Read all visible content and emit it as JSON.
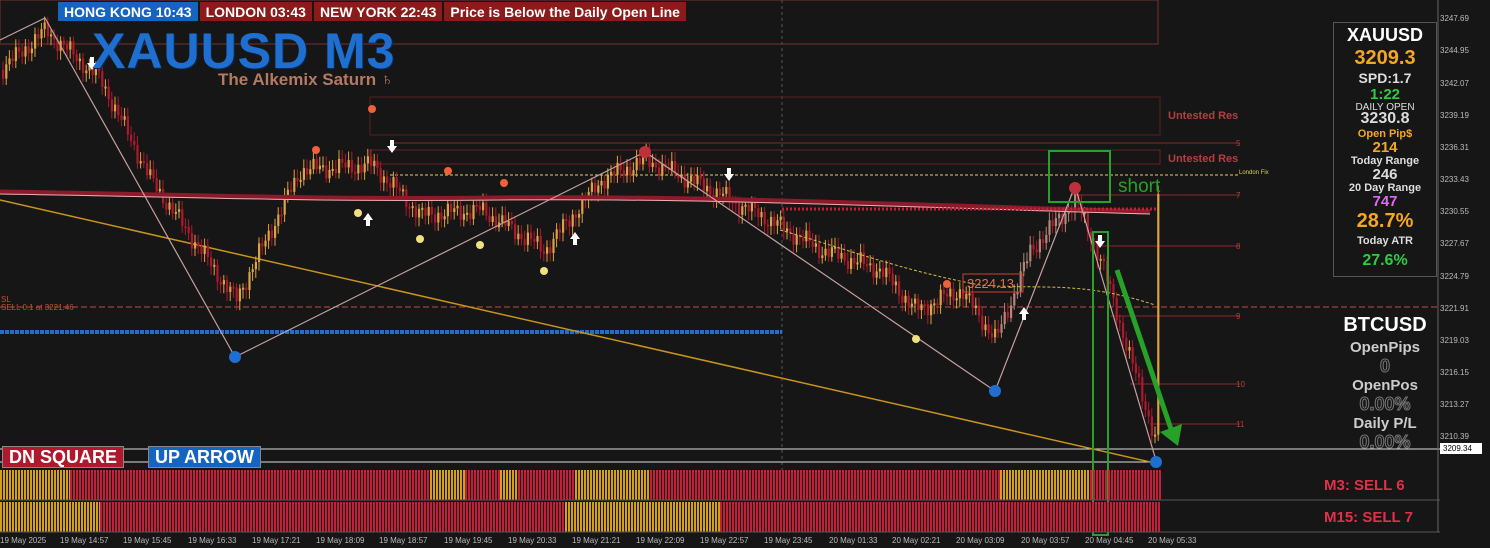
{
  "header": {
    "hongkong": "HONG KONG 10:43",
    "london": "LONDON  03:43",
    "newyork": "NEW YORK    22:43",
    "message": "Price is Below the Daily Open Line"
  },
  "title": {
    "symbol_timeframe": "XAUUSD M3",
    "subtitle": "The Alkemix Saturn ♄"
  },
  "buttons": {
    "dn_square": "DN SQUARE",
    "up_arrow": "UP ARROW"
  },
  "chart_labels": {
    "untested_res_1": "Untested Res",
    "untested_res_2": "Untested Res",
    "london_fix": "London Fix",
    "price_box": "3224.13",
    "short": "short",
    "sl": "SL",
    "sell_note": "SELL 0.1 at 3221.46",
    "fib_labels": [
      "5",
      "7",
      "8",
      "9",
      "10",
      "11"
    ]
  },
  "xau_panel": {
    "symbol": "XAUUSD",
    "price": "3209.3",
    "spread": "SPD:1.7",
    "time": "1:22",
    "daily_open_label": "DAILY OPEN",
    "daily_open_value": "3230.8",
    "open_pips_label": "Open Pip$",
    "open_pips_value": "214",
    "today_range_label": "Today Range",
    "today_range_value": "246",
    "twenty_day_label": "20 Day Range",
    "twenty_day_value": "747",
    "ratio": "28.7%",
    "today_atr_label": "Today ATR",
    "today_atr_value": "27.6%",
    "colors": {
      "price": "#f5a623",
      "time": "#2ecc40",
      "pips": "#f5a623",
      "range20": "#e066ff",
      "ratio": "#f5a623",
      "atr": "#2ecc40"
    }
  },
  "btc_panel": {
    "symbol": "BTCUSD",
    "open_pips_label": "OpenPips",
    "open_pips_value": "0",
    "open_pos_label": "OpenPos",
    "open_pos_value": "0.00%",
    "daily_pl_label": "Daily P/L",
    "daily_pl_value": "0.00%"
  },
  "price_axis": [
    "3247.69",
    "3244.95",
    "3242.07",
    "3239.19",
    "3236.31",
    "3233.43",
    "3230.55",
    "3227.67",
    "3224.79",
    "3221.91",
    "3219.03",
    "3216.15",
    "3213.27",
    "3210.39",
    "3209.34"
  ],
  "time_axis": [
    "19 May 2025",
    "19 May 14:57",
    "19 May 15:45",
    "19 May 16:33",
    "19 May 17:21",
    "19 May 18:09",
    "19 May 18:57",
    "19 May 19:45",
    "19 May 20:33",
    "19 May 21:21",
    "19 May 22:09",
    "19 May 22:57",
    "19 May 23:45",
    "20 May 01:33",
    "20 May 02:21",
    "20 May 03:09",
    "20 May 03:57",
    "20 May 04:45",
    "20 May 05:33"
  ],
  "signals": {
    "m3": "M3: SELL 6",
    "m15": "M15: SELL 7"
  },
  "colors": {
    "background": "#161616",
    "bull": "#d9a441",
    "bear": "#b0182e",
    "signal_red": "#c41e3a",
    "signal_yellow": "#d4a017",
    "highlight": "#27a127"
  }
}
